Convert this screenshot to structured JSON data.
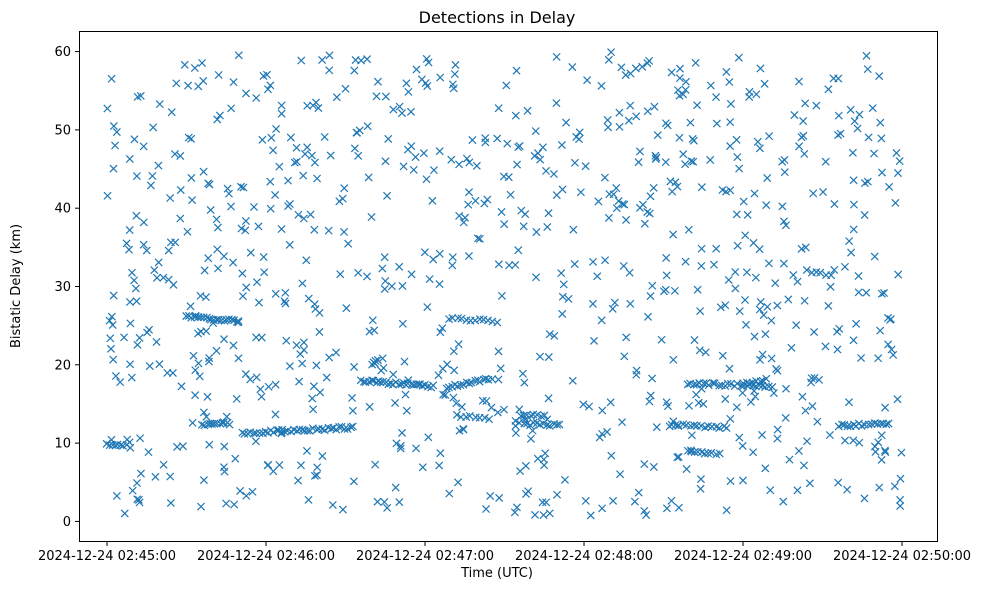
{
  "chart_data": {
    "type": "scatter",
    "title": "Detections in Delay",
    "xlabel": "Time (UTC)",
    "ylabel": "Bistatic Delay (km)",
    "xlim": [
      -0.17,
      5.22
    ],
    "ylim": [
      -2.5,
      62.5
    ],
    "x_units": "minutes after 2024-12-24 02:45:00",
    "x_ticks": [
      {
        "value": 0,
        "label": "2024-12-24 02:45:00"
      },
      {
        "value": 1,
        "label": "2024-12-24 02:46:00"
      },
      {
        "value": 2,
        "label": "2024-12-24 02:47:00"
      },
      {
        "value": 3,
        "label": "2024-12-24 02:48:00"
      },
      {
        "value": 4,
        "label": "2024-12-24 02:49:00"
      },
      {
        "value": 5,
        "label": "2024-12-24 02:50:00"
      }
    ],
    "y_ticks": [
      0,
      10,
      20,
      30,
      40,
      50,
      60
    ],
    "marker": "x",
    "color": "#1f77b4",
    "grid": false,
    "tracks": [
      {
        "x_start": 0.0,
        "x_end": 0.12,
        "y_start": 9.8,
        "y_end": 9.8,
        "count": 8
      },
      {
        "x_start": 0.5,
        "x_end": 0.83,
        "y_start": 26.2,
        "y_end": 25.6,
        "count": 22
      },
      {
        "x_start": 0.6,
        "x_end": 0.77,
        "y_start": 12.4,
        "y_end": 12.5,
        "count": 12
      },
      {
        "x_start": 0.85,
        "x_end": 1.55,
        "y_start": 11.3,
        "y_end": 12.0,
        "count": 40
      },
      {
        "x_start": 1.6,
        "x_end": 2.05,
        "y_start": 18.0,
        "y_end": 17.2,
        "count": 30
      },
      {
        "x_start": 2.15,
        "x_end": 2.42,
        "y_start": 17.2,
        "y_end": 18.3,
        "count": 16
      },
      {
        "x_start": 2.15,
        "x_end": 2.45,
        "y_start": 26.0,
        "y_end": 25.5,
        "count": 12
      },
      {
        "x_start": 2.2,
        "x_end": 2.4,
        "y_start": 13.5,
        "y_end": 13.2,
        "count": 8
      },
      {
        "x_start": 2.6,
        "x_end": 2.75,
        "y_start": 13.5,
        "y_end": 13.5,
        "count": 8
      },
      {
        "x_start": 2.62,
        "x_end": 2.85,
        "y_start": 12.5,
        "y_end": 12.3,
        "count": 12
      },
      {
        "x_start": 3.55,
        "x_end": 3.9,
        "y_start": 12.3,
        "y_end": 12.0,
        "count": 16
      },
      {
        "x_start": 3.65,
        "x_end": 3.85,
        "y_start": 9.0,
        "y_end": 8.6,
        "count": 10
      },
      {
        "x_start": 3.65,
        "x_end": 4.18,
        "y_start": 17.6,
        "y_end": 17.3,
        "count": 28
      },
      {
        "x_start": 4.0,
        "x_end": 4.15,
        "y_start": 17.5,
        "y_end": 18.2,
        "count": 8
      },
      {
        "x_start": 4.4,
        "x_end": 4.55,
        "y_start": 32.0,
        "y_end": 31.5,
        "count": 6
      },
      {
        "x_start": 4.6,
        "x_end": 4.92,
        "y_start": 12.2,
        "y_end": 12.5,
        "count": 18
      }
    ],
    "noise": {
      "count": 880,
      "x_range": [
        0.0,
        5.0
      ],
      "y_range": [
        0.5,
        60.0
      ],
      "seed": 17
    }
  }
}
